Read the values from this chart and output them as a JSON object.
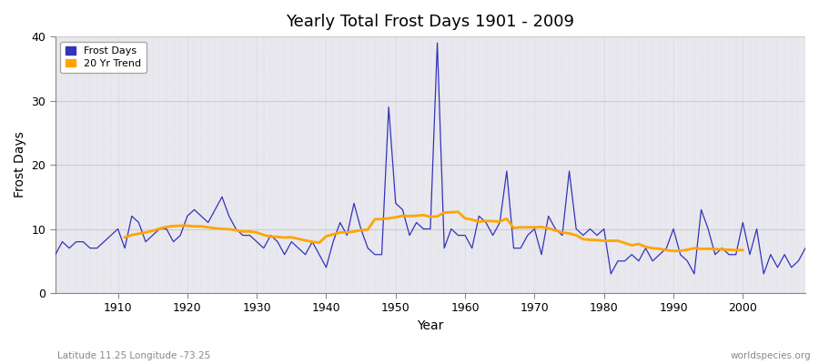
{
  "title": "Yearly Total Frost Days 1901 - 2009",
  "xlabel": "Year",
  "ylabel": "Frost Days",
  "subtitle": "Latitude 11.25 Longitude -73.25",
  "watermark": "worldspecies.org",
  "xlim": [
    1901,
    2009
  ],
  "ylim": [
    0,
    40
  ],
  "yticks": [
    0,
    10,
    20,
    30,
    40
  ],
  "xticks": [
    1910,
    1920,
    1930,
    1940,
    1950,
    1960,
    1970,
    1980,
    1990,
    2000
  ],
  "line_color": "#3333bb",
  "trend_color": "#FFA500",
  "plot_bg_color": "#e8e8ee",
  "fig_bg_color": "#ffffff",
  "years": [
    1901,
    1902,
    1903,
    1904,
    1905,
    1906,
    1907,
    1908,
    1909,
    1910,
    1911,
    1912,
    1913,
    1914,
    1915,
    1916,
    1917,
    1918,
    1919,
    1920,
    1921,
    1922,
    1923,
    1924,
    1925,
    1926,
    1927,
    1928,
    1929,
    1930,
    1931,
    1932,
    1933,
    1934,
    1935,
    1936,
    1937,
    1938,
    1939,
    1940,
    1941,
    1942,
    1943,
    1944,
    1945,
    1946,
    1947,
    1948,
    1949,
    1950,
    1951,
    1952,
    1953,
    1954,
    1955,
    1956,
    1957,
    1958,
    1959,
    1960,
    1961,
    1962,
    1963,
    1964,
    1965,
    1966,
    1967,
    1968,
    1969,
    1970,
    1971,
    1972,
    1973,
    1974,
    1975,
    1976,
    1977,
    1978,
    1979,
    1980,
    1981,
    1982,
    1983,
    1984,
    1985,
    1986,
    1987,
    1988,
    1989,
    1990,
    1991,
    1992,
    1993,
    1994,
    1995,
    1996,
    1997,
    1998,
    1999,
    2000,
    2001,
    2002,
    2003,
    2004,
    2005,
    2006,
    2007,
    2008,
    2009
  ],
  "frost_days": [
    6,
    8,
    7,
    8,
    8,
    7,
    7,
    8,
    9,
    10,
    7,
    12,
    11,
    8,
    9,
    10,
    10,
    8,
    9,
    12,
    13,
    12,
    11,
    13,
    15,
    12,
    10,
    9,
    9,
    8,
    7,
    9,
    8,
    6,
    8,
    7,
    6,
    8,
    6,
    4,
    8,
    11,
    9,
    14,
    10,
    7,
    6,
    6,
    29,
    14,
    13,
    9,
    11,
    10,
    10,
    39,
    7,
    10,
    9,
    9,
    7,
    12,
    11,
    9,
    11,
    19,
    7,
    7,
    9,
    10,
    6,
    12,
    10,
    9,
    19,
    10,
    9,
    10,
    9,
    10,
    3,
    5,
    5,
    6,
    5,
    7,
    5,
    6,
    7,
    10,
    6,
    5,
    3,
    13,
    10,
    6,
    7,
    6,
    6,
    11,
    6,
    10,
    3,
    6,
    4,
    6,
    4,
    5,
    7
  ]
}
